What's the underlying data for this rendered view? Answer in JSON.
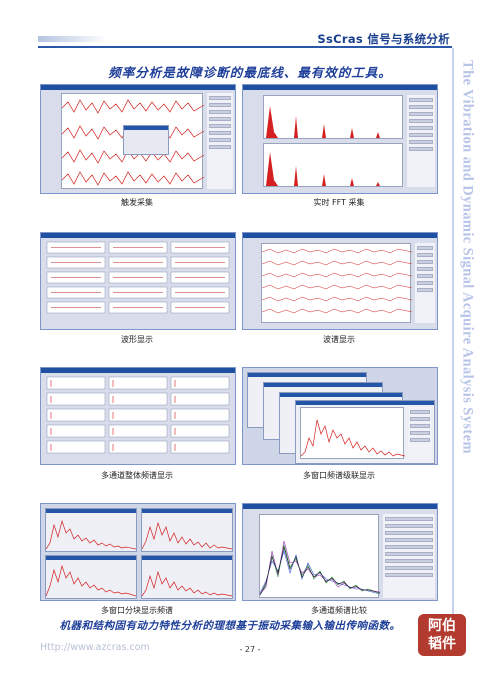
{
  "header": {
    "brand": "SsCras",
    "title_rest": "信号与系统分析"
  },
  "headline": "频率分析是故障诊断的最底线、最有效的工具。",
  "side_text": "The Vibration and Dynamic Signal Acquire Analysis System",
  "panels": [
    {
      "caption": "触发采集"
    },
    {
      "caption": "实时 FFT 采集"
    },
    {
      "caption": "波形显示"
    },
    {
      "caption": "波谱显示"
    },
    {
      "caption": "多通道整体频谱显示"
    },
    {
      "caption": "多窗口频谱级联显示"
    },
    {
      "caption": "多窗口分块显示频谱"
    },
    {
      "caption": "多通道频谱比较"
    }
  ],
  "bottom_line": "机器和结构固有动力特性分析的理想基于振动采集输入输出传响函数。",
  "footer": {
    "url": "Http://www.azcras.com",
    "page": "- 27 -"
  },
  "stamp": {
    "line1": "阿伯",
    "line2": "韬件"
  },
  "colors": {
    "accent": "#1f3f9a",
    "spectrum_red": "#d42020",
    "window_title": "#1e4fa0"
  }
}
